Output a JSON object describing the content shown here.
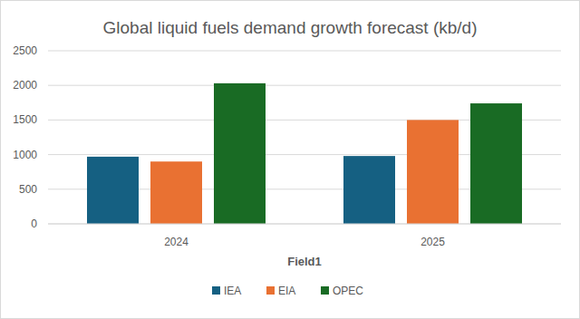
{
  "chart_data": {
    "type": "bar",
    "title": "Global liquid fuels demand growth forecast (kb/d)",
    "x_label": "Field1",
    "categories": [
      "2024",
      "2025"
    ],
    "series": [
      {
        "name": "IEA",
        "color": "#156082",
        "values": [
          970,
          980
        ]
      },
      {
        "name": "EIA",
        "color": "#e97132",
        "values": [
          900,
          1500
        ]
      },
      {
        "name": "OPEC",
        "color": "#196b24",
        "values": [
          2030,
          1740
        ]
      }
    ],
    "ylim": [
      0,
      2500
    ],
    "yticks": [
      0,
      500,
      1000,
      1500,
      2000,
      2500
    ],
    "grid": true,
    "legend": "bottom"
  }
}
